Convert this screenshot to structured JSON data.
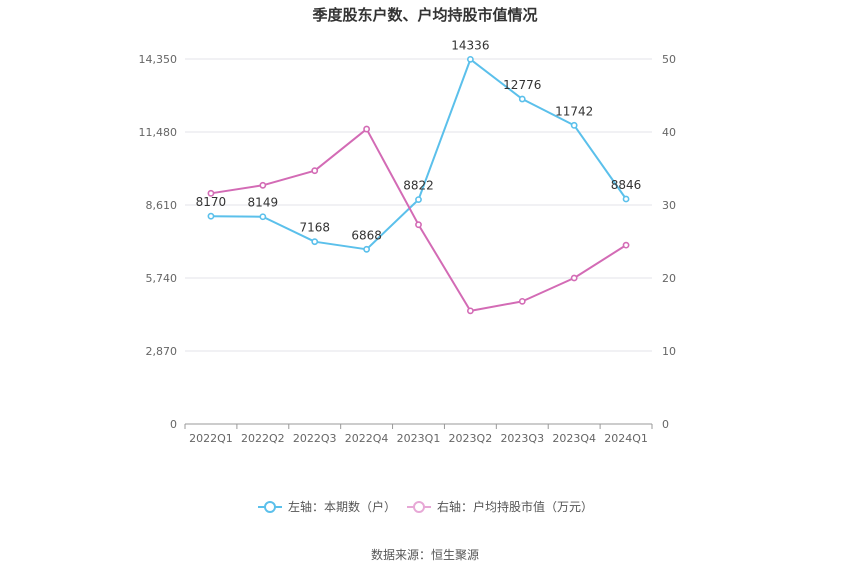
{
  "chart_data": {
    "type": "line",
    "title": "季度股东户数、户均持股市值情况",
    "categories": [
      "2022Q1",
      "2022Q2",
      "2022Q3",
      "2022Q4",
      "2023Q1",
      "2023Q2",
      "2023Q3",
      "2023Q4",
      "2024Q1"
    ],
    "left_axis": {
      "ticks": [
        "0",
        "2,870",
        "5,740",
        "8,610",
        "11,480",
        "14,350"
      ],
      "ylim": [
        0,
        14350
      ]
    },
    "right_axis": {
      "ticks": [
        "0",
        "10",
        "20",
        "30",
        "40",
        "50"
      ],
      "ylim": [
        0,
        50
      ]
    },
    "series": [
      {
        "name": "左轴：本期数（户）",
        "axis": "left",
        "color": "#5bc0eb",
        "values": [
          8170,
          8149,
          7168,
          6868,
          8822,
          14336,
          12776,
          11742,
          8846
        ],
        "labels": [
          "8170",
          "8149",
          "7168",
          "6868",
          "8822",
          "14336",
          "12776",
          "11742",
          "8846"
        ]
      },
      {
        "name": "右轴：户均持股市值（万元）",
        "axis": "right",
        "color": "#d36bb5",
        "values": [
          31.6,
          32.7,
          34.7,
          40.4,
          27.3,
          15.5,
          16.8,
          20.0,
          24.5
        ]
      }
    ],
    "grid": true,
    "legend_position": "bottom-center"
  },
  "source_text": "数据来源：恒生聚源"
}
